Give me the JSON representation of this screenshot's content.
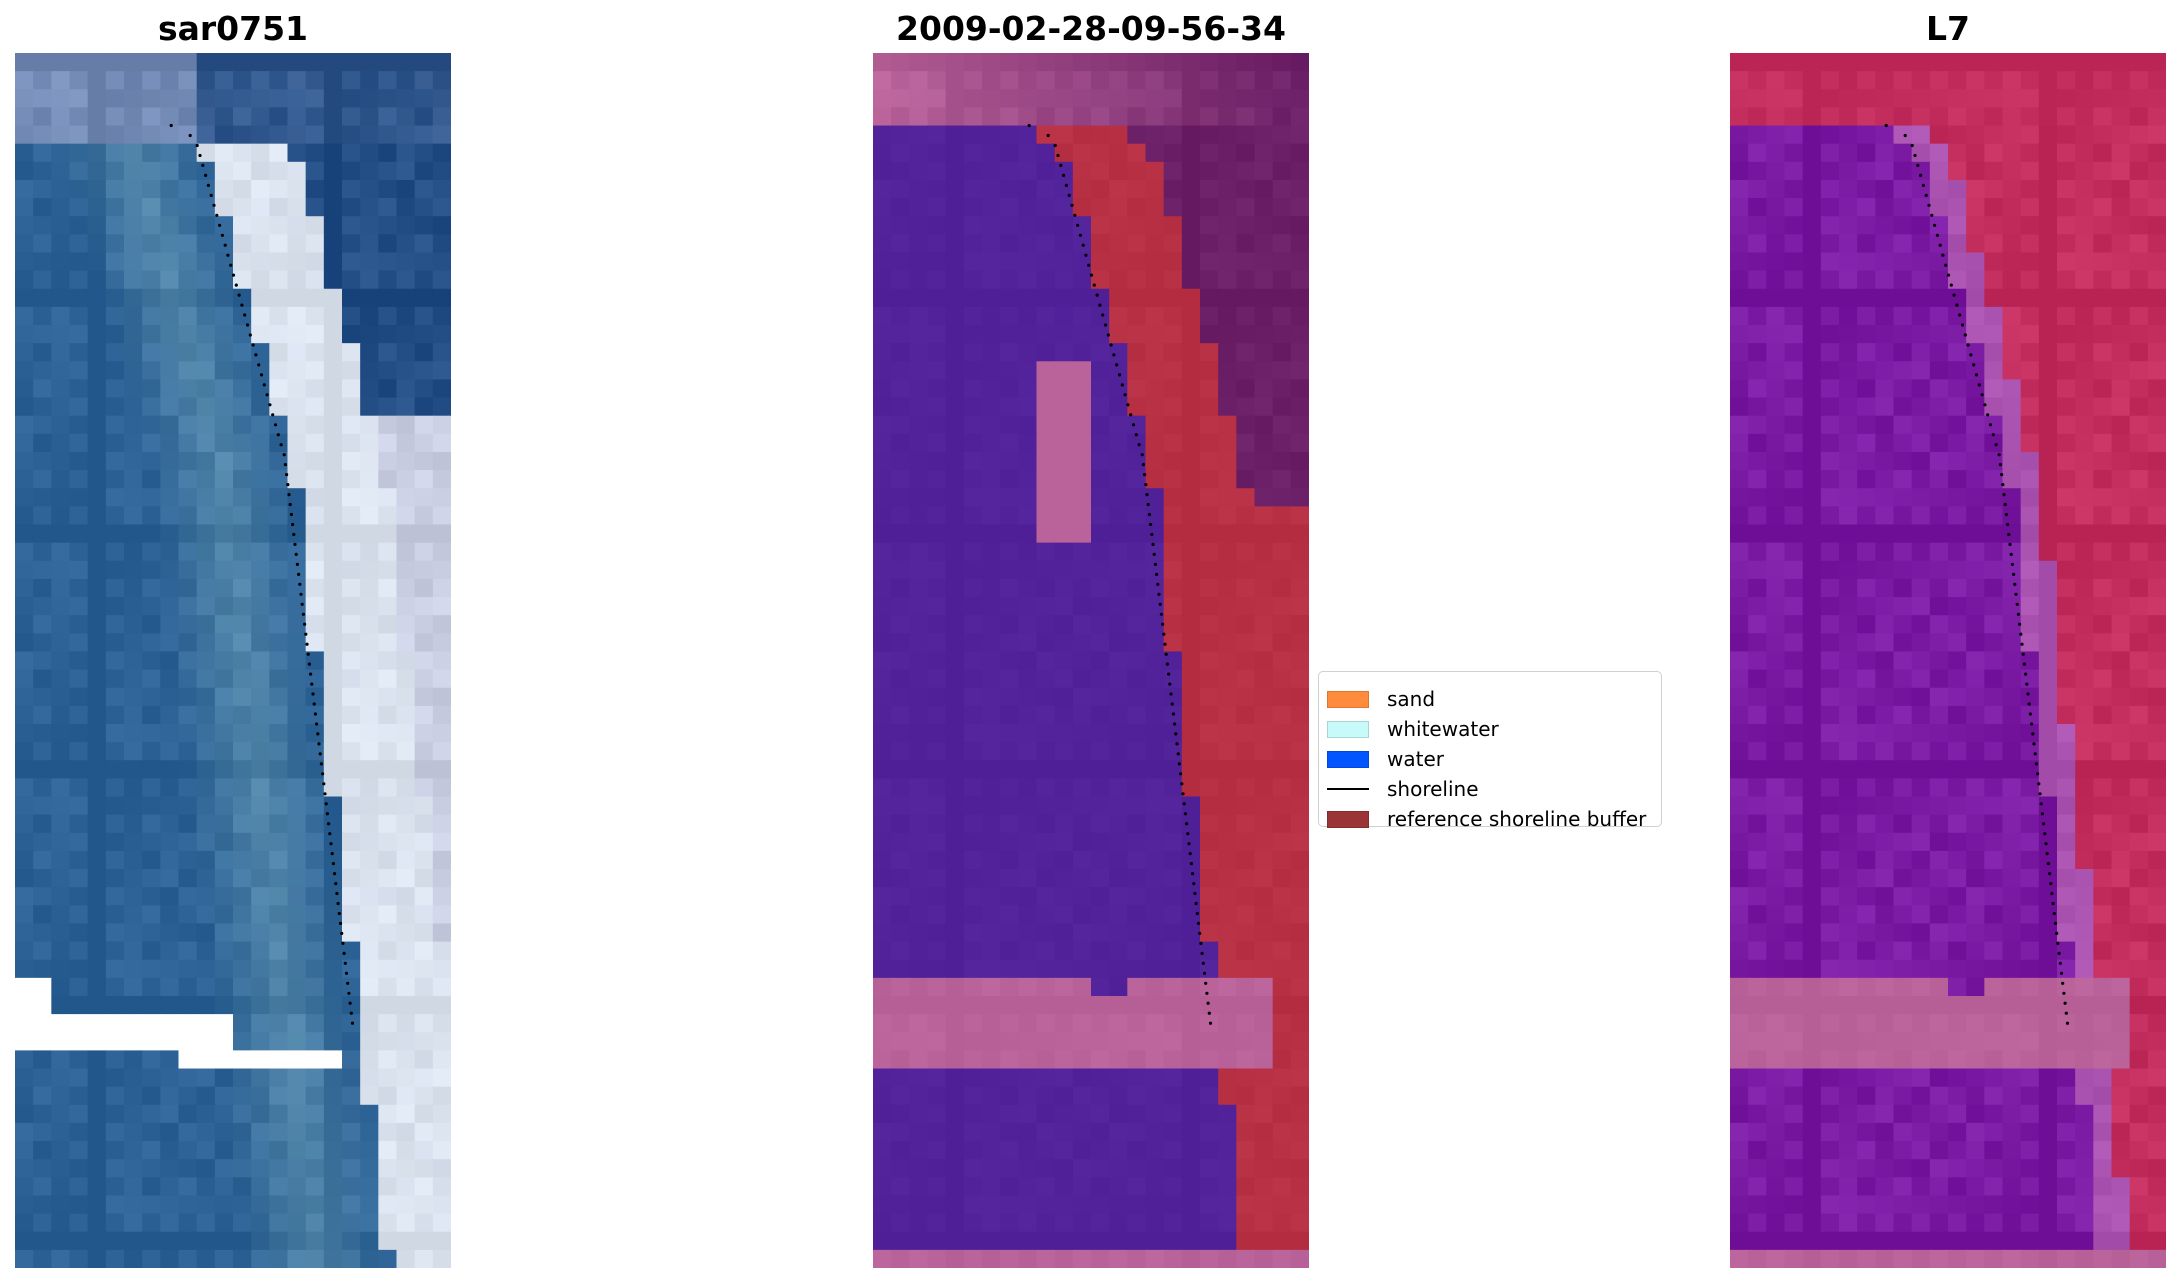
{
  "panels": [
    {
      "title": "sar0751",
      "kind": "rgb"
    },
    {
      "title": "2009-02-28-09-56-34",
      "kind": "classified"
    },
    {
      "title": "L7",
      "kind": "index"
    }
  ],
  "legend": {
    "items": [
      {
        "label": "sand",
        "color": "#ff8c3c",
        "style": "patch"
      },
      {
        "label": "whitewater",
        "color": "#c9fafa",
        "style": "patch"
      },
      {
        "label": "water",
        "color": "#0055ff",
        "style": "patch"
      },
      {
        "label": "shoreline",
        "color": "#000000",
        "style": "line"
      },
      {
        "label": "reference shoreline buffer",
        "color": "#9b3437",
        "style": "patch"
      }
    ]
  },
  "colors": {
    "water_blue": "#2b6195",
    "deep_blue": "#234d85",
    "surf_white": "#e9ecf4",
    "class_water": "#52229a",
    "class_land": "#b73043",
    "class_sky": "#6b1f67",
    "class_pink": "#b9639a",
    "index_purple": "#7a1aa3",
    "index_red": "#c22d5d",
    "no_data": "#ffffff"
  }
}
